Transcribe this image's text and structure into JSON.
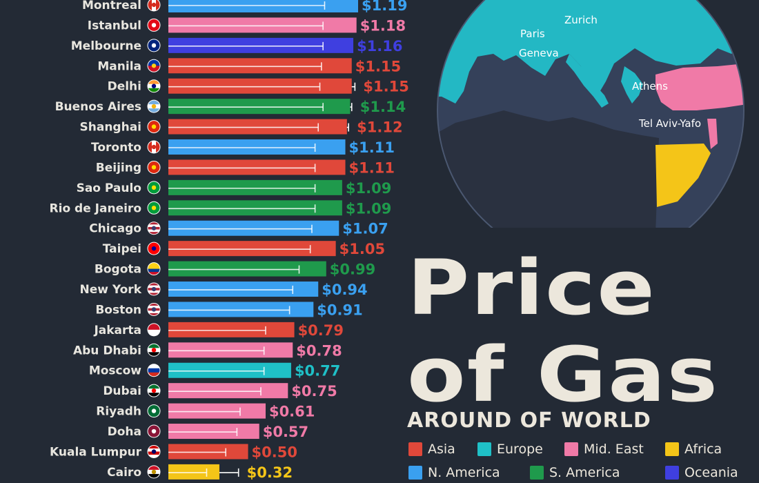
{
  "title": {
    "line1": "Price",
    "line2": "of Gas",
    "subtitle": "AROUND OF WORLD"
  },
  "colors": {
    "Asia": "#e0483a",
    "Europe": "#1fc0c7",
    "Mid. East": "#f07aa7",
    "Africa": "#f4c518",
    "N. America": "#3aa0f0",
    "S. America": "#1f9a4c",
    "Oceania": "#3f3fe0"
  },
  "legend": {
    "items": [
      {
        "label": "Asia",
        "region": "Asia"
      },
      {
        "label": "Europe",
        "region": "Europe"
      },
      {
        "label": "Mid. East",
        "region": "Mid. East"
      },
      {
        "label": "Africa",
        "region": "Africa"
      },
      {
        "label": "N. America",
        "region": "N. America"
      },
      {
        "label": "S. America",
        "region": "S. America"
      },
      {
        "label": "Oceania",
        "region": "Oceania"
      }
    ]
  },
  "map": {
    "labels": [
      "Zurich",
      "Paris",
      "Geneva",
      "Athens",
      "Tel Aviv-Yafo"
    ]
  },
  "chart_data": {
    "type": "bar",
    "orientation": "horizontal",
    "xlim": [
      0,
      1.3
    ],
    "value_prefix": "$",
    "categories": [
      "Montreal",
      "Istanbul",
      "Melbourne",
      "Manila",
      "Delhi",
      "Buenos Aires",
      "Shanghai",
      "Toronto",
      "Beijing",
      "Sao Paulo",
      "Rio de Janeiro",
      "Chicago",
      "Taipei",
      "Bogota",
      "New York",
      "Boston",
      "Jakarta",
      "Abu Dhabi",
      "Moscow",
      "Dubai",
      "Riyadh",
      "Doha",
      "Kuala Lumpur",
      "Cairo"
    ],
    "values": [
      1.19,
      1.18,
      1.16,
      1.15,
      1.15,
      1.14,
      1.12,
      1.11,
      1.11,
      1.09,
      1.09,
      1.07,
      1.05,
      0.99,
      0.94,
      0.91,
      0.79,
      0.78,
      0.77,
      0.75,
      0.61,
      0.57,
      0.5,
      0.32
    ],
    "value_labels": [
      "$1.19",
      "$1.18",
      "$1.16",
      "$1.15",
      "$1.15",
      "$1.14",
      "$1.12",
      "$1.11",
      "$1.11",
      "$1.09",
      "$1.09",
      "$1.07",
      "$1.05",
      "$0.99",
      "$0.94",
      "$0.91",
      "$0.79",
      "$0.78",
      "$0.77",
      "$0.75",
      "$0.61",
      "$0.57",
      "$0.50",
      "$0.32"
    ],
    "regions": [
      "N. America",
      "Mid. East",
      "Oceania",
      "Asia",
      "Asia",
      "S. America",
      "Asia",
      "N. America",
      "Asia",
      "S. America",
      "S. America",
      "N. America",
      "Asia",
      "S. America",
      "N. America",
      "N. America",
      "Asia",
      "Mid. East",
      "Europe",
      "Mid. East",
      "Mid. East",
      "Mid. East",
      "Asia",
      "Africa"
    ],
    "range_low": [
      0.98,
      0.97,
      0.97,
      0.96,
      0.95,
      0.97,
      0.94,
      0.92,
      0.92,
      0.92,
      0.92,
      0.9,
      0.89,
      0.82,
      0.78,
      0.76,
      0.61,
      0.6,
      0.6,
      0.58,
      0.45,
      0.43,
      0.36,
      0.24
    ],
    "range_high": [
      1.19,
      1.18,
      1.16,
      1.15,
      1.17,
      1.15,
      1.13,
      1.11,
      1.11,
      1.09,
      1.09,
      1.07,
      1.05,
      0.99,
      0.94,
      0.91,
      0.79,
      0.78,
      0.77,
      0.75,
      0.61,
      0.57,
      0.5,
      0.44
    ],
    "flags": [
      {
        "colors": [
          "#d52b1e",
          "#ffffff",
          "#d52b1e"
        ],
        "mark": "#d52b1e",
        "dir": "v"
      },
      {
        "colors": [
          "#e30a17"
        ],
        "mark": "#ffffff",
        "dir": "s"
      },
      {
        "colors": [
          "#00247d"
        ],
        "mark": "#ffffff",
        "dir": "s"
      },
      {
        "colors": [
          "#0038a8",
          "#ce1126"
        ],
        "mark": "#fcd116",
        "dir": "h"
      },
      {
        "colors": [
          "#ff9933",
          "#ffffff",
          "#138808"
        ],
        "mark": "#000080",
        "dir": "h"
      },
      {
        "colors": [
          "#74acdf",
          "#ffffff",
          "#74acdf"
        ],
        "mark": "#f6b40e",
        "dir": "h"
      },
      {
        "colors": [
          "#de2910"
        ],
        "mark": "#ffde00",
        "dir": "s"
      },
      {
        "colors": [
          "#d52b1e",
          "#ffffff",
          "#d52b1e"
        ],
        "mark": "#d52b1e",
        "dir": "v"
      },
      {
        "colors": [
          "#de2910"
        ],
        "mark": "#ffde00",
        "dir": "s"
      },
      {
        "colors": [
          "#009c3b"
        ],
        "mark": "#ffdf00",
        "dir": "s"
      },
      {
        "colors": [
          "#009c3b"
        ],
        "mark": "#ffdf00",
        "dir": "s"
      },
      {
        "colors": [
          "#b22234",
          "#ffffff",
          "#b22234",
          "#ffffff",
          "#b22234"
        ],
        "mark": "#3c3b6e",
        "dir": "h"
      },
      {
        "colors": [
          "#fe0000"
        ],
        "mark": "#000095",
        "dir": "s"
      },
      {
        "colors": [
          "#fcd116",
          "#fcd116",
          "#003893",
          "#ce1126"
        ],
        "mark": "",
        "dir": "h"
      },
      {
        "colors": [
          "#b22234",
          "#ffffff",
          "#b22234",
          "#ffffff",
          "#b22234"
        ],
        "mark": "#3c3b6e",
        "dir": "h"
      },
      {
        "colors": [
          "#b22234",
          "#ffffff",
          "#b22234",
          "#ffffff",
          "#b22234"
        ],
        "mark": "#3c3b6e",
        "dir": "h"
      },
      {
        "colors": [
          "#ce1126",
          "#ffffff"
        ],
        "mark": "",
        "dir": "h"
      },
      {
        "colors": [
          "#00732f",
          "#ffffff",
          "#000000"
        ],
        "mark": "#ff0000",
        "dir": "h"
      },
      {
        "colors": [
          "#ffffff",
          "#0039a6",
          "#d52b1e"
        ],
        "mark": "",
        "dir": "h"
      },
      {
        "colors": [
          "#00732f",
          "#ffffff",
          "#000000"
        ],
        "mark": "#ff0000",
        "dir": "h"
      },
      {
        "colors": [
          "#006c35"
        ],
        "mark": "#ffffff",
        "dir": "s"
      },
      {
        "colors": [
          "#8a1538"
        ],
        "mark": "#ffffff",
        "dir": "s"
      },
      {
        "colors": [
          "#cc0001",
          "#ffffff",
          "#cc0001",
          "#ffffff"
        ],
        "mark": "#010066",
        "dir": "h"
      },
      {
        "colors": [
          "#ce1126",
          "#ffffff",
          "#000000"
        ],
        "mark": "#c09300",
        "dir": "h"
      }
    ]
  }
}
